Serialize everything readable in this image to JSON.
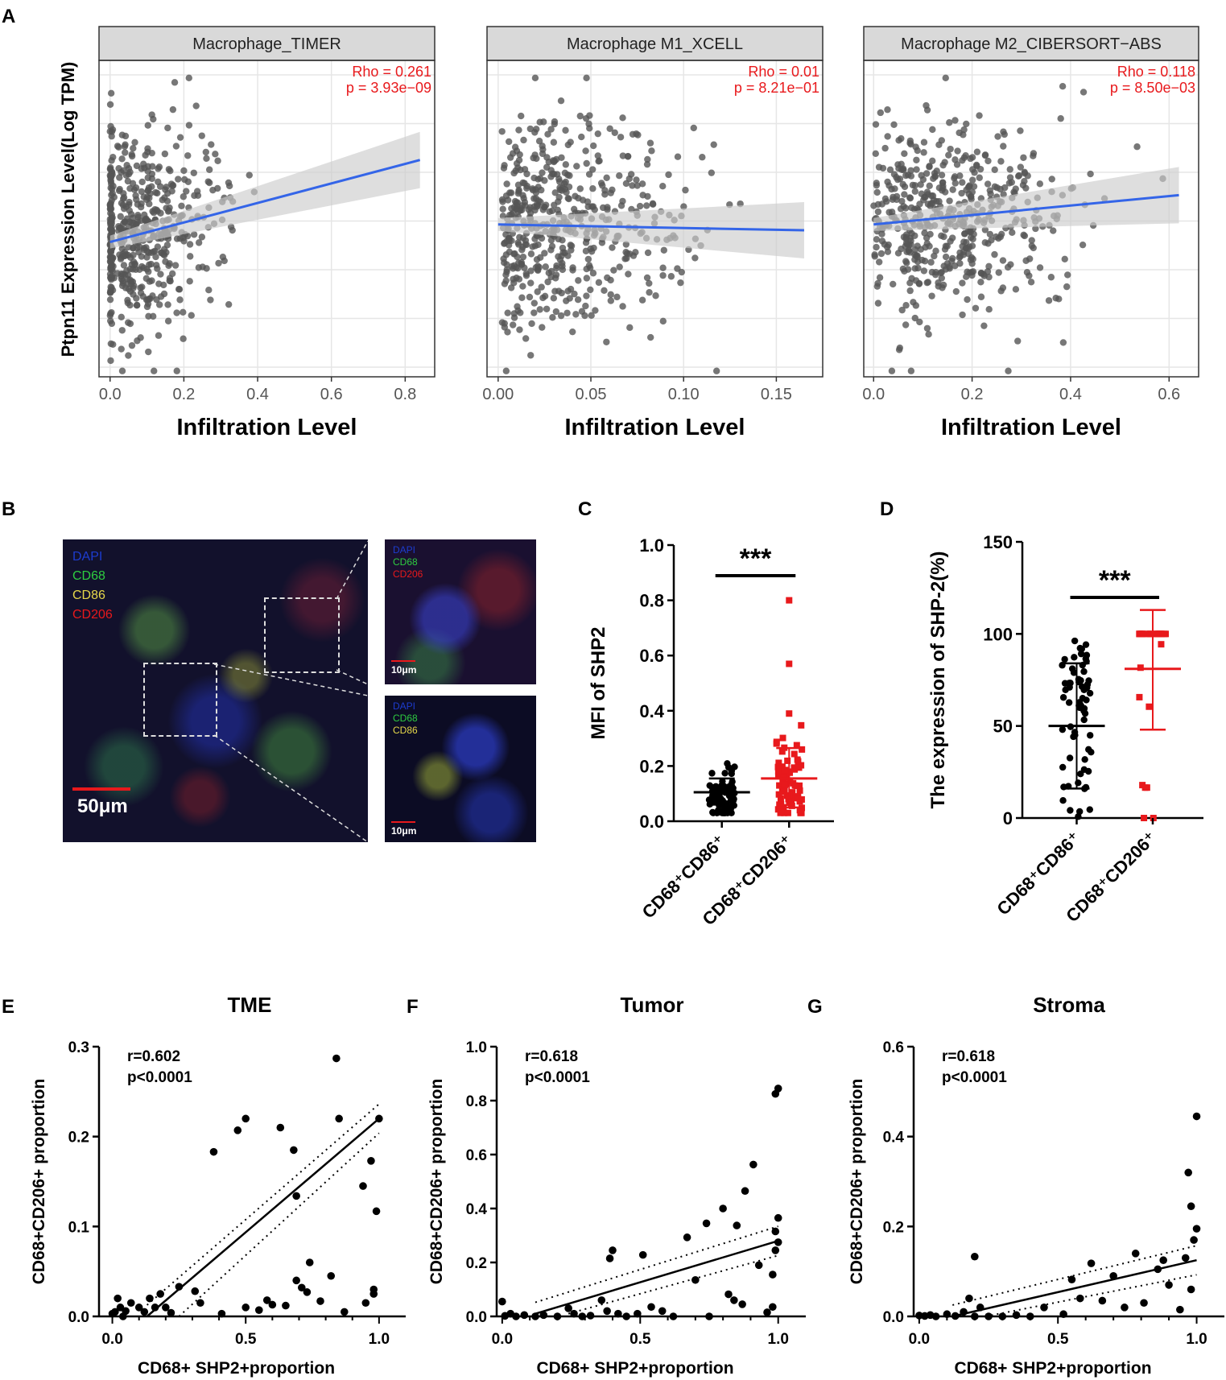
{
  "panel_letters": {
    "a": "A",
    "b": "B",
    "c": "C",
    "d": "D",
    "e": "E",
    "f": "F",
    "g": "G"
  },
  "colors": {
    "point": "#555555",
    "fit": "#3465e8",
    "ci": "#cccccc",
    "stat": "#e8191c",
    "red": "#e8191c",
    "black": "#000000"
  },
  "panel_a_ylabel": "Ptpn11 Expression Level(Log TPM)",
  "panel_b": {
    "labels_main": [
      "DAPI",
      "CD68",
      "CD86",
      "CD206"
    ],
    "label_colors": [
      "#1d3ccf",
      "#2ecc40",
      "#e6d84a",
      "#e8191c"
    ],
    "scale_main": "50μm",
    "inset_top_labels": [
      "DAPI",
      "CD68",
      "CD206"
    ],
    "inset_top_colors": [
      "#1d3ccf",
      "#2ecc40",
      "#e8191c"
    ],
    "inset_bottom_labels": [
      "DAPI",
      "CD68",
      "CD86"
    ],
    "inset_bottom_colors": [
      "#1d3ccf",
      "#2ecc40",
      "#e6d84a"
    ],
    "scale_inset": "10μm"
  },
  "chart_data": [
    {
      "panel": "A",
      "type": "scatter",
      "title": "Macrophage_TIMER",
      "xlabel": "Infiltration Level",
      "ylabel": "Ptpn11 Expression Level(Log TPM)",
      "xlim": [
        -0.03,
        0.88
      ],
      "xticks": [
        "0.0",
        "0.2",
        "0.4",
        "0.6",
        "0.8"
      ],
      "xtick_values": [
        0,
        0.2,
        0.4,
        0.6,
        0.8
      ],
      "stat_rho": "Rho = 0.261",
      "stat_p": "p = 3.93e−09",
      "fit": {
        "x": [
          0.0,
          0.84
        ],
        "y": [
          4.45,
          5.15
        ]
      }
    },
    {
      "panel": "A",
      "type": "scatter",
      "title": "Macrophage M1_XCELL",
      "xlabel": "Infiltration Level",
      "ylabel": "",
      "xlim": [
        -0.006,
        0.175
      ],
      "xticks": [
        "0.00",
        "0.05",
        "0.10",
        "0.15"
      ],
      "xtick_values": [
        0,
        0.05,
        0.1,
        0.15
      ],
      "stat_rho": "Rho = 0.01",
      "stat_p": "p = 8.21e−01",
      "fit": {
        "x": [
          0.0,
          0.165
        ],
        "y": [
          4.6,
          4.55
        ]
      }
    },
    {
      "panel": "A",
      "type": "scatter",
      "title": "Macrophage M2_CIBERSORT−ABS",
      "xlabel": "Infiltration Level",
      "ylabel": "",
      "xlim": [
        -0.02,
        0.66
      ],
      "xticks": [
        "0.0",
        "0.2",
        "0.4",
        "0.6"
      ],
      "xtick_values": [
        0,
        0.2,
        0.4,
        0.6
      ],
      "stat_rho": "Rho = 0.118",
      "stat_p": "p = 8.50e−03",
      "fit": {
        "x": [
          0.0,
          0.62
        ],
        "y": [
          4.6,
          4.85
        ]
      }
    },
    {
      "panel": "C",
      "type": "scatter",
      "ylabel": "MFI of SHP2",
      "ylim": [
        0,
        1.0
      ],
      "yticks": [
        "0.0",
        "0.2",
        "0.4",
        "0.6",
        "0.8",
        "1.0"
      ],
      "ytick_values": [
        0,
        0.2,
        0.4,
        0.6,
        0.8,
        1.0
      ],
      "categories": [
        "CD68⁺CD86⁺",
        "CD68⁺CD206⁺"
      ],
      "significance": "***",
      "series": [
        {
          "name": "CD68⁺CD86⁺",
          "mean": 0.105,
          "sd_upper": 0.155,
          "sd_lower": 0.06
        },
        {
          "name": "CD68⁺CD206⁺",
          "mean": 0.155,
          "sd_upper": 0.265,
          "sd_lower": 0.05,
          "outliers": [
            0.8,
            0.57,
            0.39
          ]
        }
      ]
    },
    {
      "panel": "D",
      "type": "scatter",
      "ylabel": "The expression of SHP-2(%)",
      "ylim": [
        0,
        150
      ],
      "yticks": [
        "0",
        "50",
        "100",
        "150"
      ],
      "ytick_values": [
        0,
        50,
        100,
        150
      ],
      "categories": [
        "CD68⁺CD86⁺",
        "CD68⁺CD206⁺"
      ],
      "significance": "***",
      "series": [
        {
          "name": "CD68⁺CD86⁺",
          "mean": 50,
          "sd_upper": 84,
          "sd_lower": 16
        },
        {
          "name": "CD68⁺CD206⁺",
          "mean": 81,
          "sd_upper": 113,
          "sd_lower": 48
        }
      ]
    },
    {
      "panel": "E",
      "type": "scatter",
      "title": "TME",
      "xlabel": "CD68+ SHP2+proportion",
      "ylabel": "CD68+CD206+ proportion",
      "xlim": [
        -0.05,
        1.1
      ],
      "ylim": [
        0,
        0.3
      ],
      "xticks": [
        "0.0",
        "0.5",
        "1.0"
      ],
      "xtick_values": [
        0,
        0.5,
        1.0
      ],
      "yticks": [
        "0.0",
        "0.1",
        "0.2",
        "0.3"
      ],
      "ytick_values": [
        0,
        0.1,
        0.2,
        0.3
      ],
      "r": "r=0.602",
      "p": "p<0.0001",
      "fit": {
        "x": [
          0.13,
          1.0
        ],
        "y": [
          0.0,
          0.22
        ]
      },
      "points": [
        [
          0.0,
          0.003
        ],
        [
          0.01,
          0.005
        ],
        [
          0.02,
          0.02
        ],
        [
          0.03,
          0.01
        ],
        [
          0.04,
          0.0
        ],
        [
          0.05,
          0.006
        ],
        [
          0.07,
          0.015
        ],
        [
          0.1,
          0.01
        ],
        [
          0.12,
          0.005
        ],
        [
          0.14,
          0.02
        ],
        [
          0.16,
          0.01
        ],
        [
          0.18,
          0.025
        ],
        [
          0.2,
          0.01
        ],
        [
          0.22,
          0.004
        ],
        [
          0.25,
          0.033
        ],
        [
          0.31,
          0.028
        ],
        [
          0.33,
          0.015
        ],
        [
          0.38,
          0.183
        ],
        [
          0.41,
          0.003
        ],
        [
          0.47,
          0.207
        ],
        [
          0.5,
          0.22
        ],
        [
          0.5,
          0.01
        ],
        [
          0.55,
          0.007
        ],
        [
          0.58,
          0.018
        ],
        [
          0.6,
          0.013
        ],
        [
          0.63,
          0.21
        ],
        [
          0.65,
          0.012
        ],
        [
          0.68,
          0.185
        ],
        [
          0.69,
          0.134
        ],
        [
          0.69,
          0.04
        ],
        [
          0.71,
          0.032
        ],
        [
          0.73,
          0.027
        ],
        [
          0.74,
          0.06
        ],
        [
          0.78,
          0.017
        ],
        [
          0.82,
          0.045
        ],
        [
          0.84,
          0.287
        ],
        [
          0.85,
          0.22
        ],
        [
          0.87,
          0.005
        ],
        [
          0.94,
          0.145
        ],
        [
          0.95,
          0.015
        ],
        [
          0.97,
          0.173
        ],
        [
          0.98,
          0.025
        ],
        [
          0.98,
          0.03
        ],
        [
          0.99,
          0.117
        ],
        [
          1.0,
          0.22
        ]
      ]
    },
    {
      "panel": "F",
      "type": "scatter",
      "title": "Tumor",
      "xlabel": "CD68+ SHP2+proportion",
      "ylabel": "CD68+CD206+ proportion",
      "xlim": [
        -0.02,
        1.1
      ],
      "ylim": [
        0,
        1.0
      ],
      "xticks": [
        "0.0",
        "0.5",
        "1.0"
      ],
      "xtick_values": [
        0,
        0.5,
        1.0
      ],
      "yticks": [
        "0.0",
        "0.2",
        "0.4",
        "0.6",
        "0.8",
        "1.0"
      ],
      "ytick_values": [
        0,
        0.2,
        0.4,
        0.6,
        0.8,
        1.0
      ],
      "r": "r=0.618",
      "p": "p<0.0001",
      "fit": {
        "x": [
          0.12,
          1.0
        ],
        "y": [
          0.01,
          0.28
        ]
      },
      "points": [
        [
          0.0,
          0.055
        ],
        [
          0.01,
          0.002
        ],
        [
          0.03,
          0.01
        ],
        [
          0.05,
          0.0
        ],
        [
          0.08,
          0.005
        ],
        [
          0.12,
          0.0
        ],
        [
          0.15,
          0.005
        ],
        [
          0.2,
          0.0
        ],
        [
          0.24,
          0.03
        ],
        [
          0.26,
          0.01
        ],
        [
          0.29,
          0.0
        ],
        [
          0.32,
          0.003
        ],
        [
          0.36,
          0.06
        ],
        [
          0.38,
          0.02
        ],
        [
          0.39,
          0.215
        ],
        [
          0.4,
          0.245
        ],
        [
          0.42,
          0.01
        ],
        [
          0.45,
          0.0
        ],
        [
          0.49,
          0.01
        ],
        [
          0.51,
          0.228
        ],
        [
          0.54,
          0.035
        ],
        [
          0.58,
          0.02
        ],
        [
          0.62,
          0.0
        ],
        [
          0.67,
          0.293
        ],
        [
          0.7,
          0.135
        ],
        [
          0.74,
          0.345
        ],
        [
          0.75,
          0.0
        ],
        [
          0.8,
          0.4
        ],
        [
          0.82,
          0.082
        ],
        [
          0.84,
          0.06
        ],
        [
          0.85,
          0.337
        ],
        [
          0.87,
          0.045
        ],
        [
          0.88,
          0.465
        ],
        [
          0.91,
          0.563
        ],
        [
          0.93,
          0.19
        ],
        [
          0.96,
          0.015
        ],
        [
          0.98,
          0.155
        ],
        [
          0.98,
          0.035
        ],
        [
          0.99,
          0.245
        ],
        [
          0.99,
          0.315
        ],
        [
          0.99,
          0.825
        ],
        [
          1.0,
          0.275
        ],
        [
          1.0,
          0.365
        ],
        [
          1.0,
          0.845
        ]
      ]
    },
    {
      "panel": "G",
      "type": "scatter",
      "title": "Stroma",
      "xlabel": "CD68+ SHP2+proportion",
      "ylabel": "CD68+CD206+ proportion",
      "xlim": [
        -0.02,
        1.1
      ],
      "ylim": [
        0,
        0.6
      ],
      "xticks": [
        "0.0",
        "0.5",
        "1.0"
      ],
      "xtick_values": [
        0,
        0.5,
        1.0
      ],
      "yticks": [
        "0.0",
        "0.2",
        "0.4",
        "0.6"
      ],
      "ytick_values": [
        0,
        0.2,
        0.4,
        0.6
      ],
      "r": "r=0.618",
      "p": "p<0.0001",
      "fit": {
        "x": [
          0.12,
          1.0
        ],
        "y": [
          0.0,
          0.125
        ]
      },
      "points": [
        [
          0.0,
          0.002
        ],
        [
          0.02,
          0.001
        ],
        [
          0.04,
          0.003
        ],
        [
          0.06,
          0.0
        ],
        [
          0.1,
          0.005
        ],
        [
          0.13,
          0.001
        ],
        [
          0.16,
          0.01
        ],
        [
          0.18,
          0.04
        ],
        [
          0.2,
          0.0
        ],
        [
          0.2,
          0.133
        ],
        [
          0.22,
          0.02
        ],
        [
          0.25,
          0.0
        ],
        [
          0.3,
          0.0
        ],
        [
          0.35,
          0.003
        ],
        [
          0.4,
          0.0
        ],
        [
          0.45,
          0.02
        ],
        [
          0.52,
          0.005
        ],
        [
          0.55,
          0.082
        ],
        [
          0.58,
          0.04
        ],
        [
          0.62,
          0.118
        ],
        [
          0.66,
          0.035
        ],
        [
          0.7,
          0.09
        ],
        [
          0.74,
          0.02
        ],
        [
          0.78,
          0.14
        ],
        [
          0.81,
          0.03
        ],
        [
          0.86,
          0.105
        ],
        [
          0.88,
          0.125
        ],
        [
          0.9,
          0.07
        ],
        [
          0.94,
          0.015
        ],
        [
          0.96,
          0.13
        ],
        [
          0.97,
          0.32
        ],
        [
          0.98,
          0.06
        ],
        [
          0.98,
          0.245
        ],
        [
          0.99,
          0.17
        ],
        [
          1.0,
          0.195
        ],
        [
          1.0,
          0.445
        ]
      ]
    }
  ]
}
